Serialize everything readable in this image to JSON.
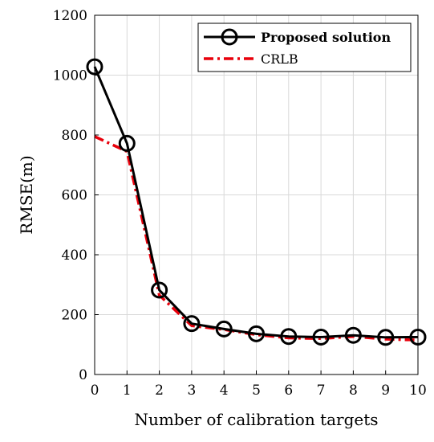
{
  "chart_data": {
    "type": "line",
    "title": "",
    "xlabel": "Number of calibration targets",
    "ylabel": "RMSE(m)",
    "xlim": [
      0,
      10
    ],
    "ylim": [
      0,
      1200
    ],
    "xticks": [
      0,
      1,
      2,
      3,
      4,
      5,
      6,
      7,
      8,
      9,
      10
    ],
    "yticks": [
      0,
      200,
      400,
      600,
      800,
      1000,
      1200
    ],
    "xtick_labels": [
      "0",
      "1",
      "2",
      "3",
      "4",
      "5",
      "6",
      "7",
      "8",
      "9",
      "10"
    ],
    "ytick_labels": [
      "0",
      "200",
      "400",
      "600",
      "800",
      "1000",
      "1200"
    ],
    "grid": true,
    "legend_position": "top-right",
    "x": [
      0,
      1,
      2,
      3,
      4,
      5,
      6,
      7,
      8,
      9,
      10
    ],
    "series": [
      {
        "name": "Proposed solution",
        "values": [
          1028,
          772,
          282,
          170,
          152,
          136,
          127,
          125,
          131,
          124,
          125
        ],
        "color": "#000000",
        "style": "solid",
        "marker": "circle"
      },
      {
        "name": "CRLB",
        "values": [
          795,
          745,
          265,
          163,
          150,
          133,
          122,
          120,
          127,
          118,
          115
        ],
        "color": "#e8000b",
        "style": "dash-dot",
        "marker": "none"
      }
    ]
  }
}
